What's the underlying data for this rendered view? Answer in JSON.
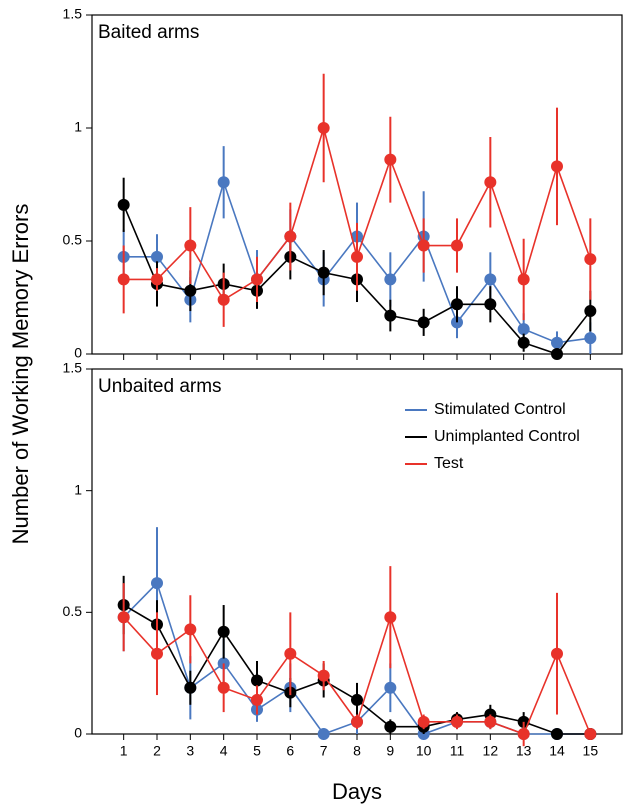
{
  "chart_data": [
    {
      "type": "line",
      "title": "Baited arms",
      "ylabel": "Number of Working Memory Errors",
      "ylim": [
        0,
        1.5
      ],
      "yticks": [
        0,
        0.5,
        1,
        1.5
      ],
      "series": [
        {
          "color": "#4a78c0",
          "values": [
            0.43,
            0.43,
            0.24,
            0.76,
            0.33,
            0.52,
            0.33,
            0.52,
            0.33,
            0.52,
            0.14,
            0.33,
            0.11,
            0.05,
            0.07
          ],
          "errors": [
            0.12,
            0.1,
            0.1,
            0.16,
            0.13,
            0.12,
            0.12,
            0.15,
            0.12,
            0.2,
            0.07,
            0.12,
            0.07,
            0.05,
            0.07
          ]
        },
        {
          "color": "#000000",
          "values": [
            0.66,
            0.31,
            0.28,
            0.31,
            0.28,
            0.43,
            0.36,
            0.33,
            0.17,
            0.14,
            0.22,
            0.22,
            0.05,
            0,
            0.19
          ],
          "errors": [
            0.12,
            0.1,
            0.09,
            0.09,
            0.08,
            0.1,
            0.1,
            0.1,
            0.07,
            0.06,
            0.08,
            0.08,
            0.04,
            0,
            0.09
          ]
        },
        {
          "color": "#e8322a",
          "values": [
            0.33,
            0.33,
            0.48,
            0.24,
            0.33,
            0.52,
            1.0,
            0.43,
            0.86,
            0.48,
            0.48,
            0.76,
            0.33,
            0.83,
            0.42
          ],
          "errors": [
            0.15,
            0.05,
            0.17,
            0.12,
            0.1,
            0.15,
            0.24,
            0.15,
            0.19,
            0.12,
            0.12,
            0.2,
            0.18,
            0.26,
            0.18
          ]
        }
      ]
    },
    {
      "type": "line",
      "title": "Unbaited arms",
      "xlabel": "Days",
      "x": [
        1,
        2,
        3,
        4,
        5,
        6,
        7,
        8,
        9,
        10,
        11,
        12,
        13,
        14,
        15
      ],
      "xlim": [
        0.05,
        15.95
      ],
      "ylim": [
        0,
        1.5
      ],
      "yticks": [
        0,
        0.5,
        1,
        1.5
      ],
      "series": [
        {
          "name": "Stimulated Control",
          "color": "#4a78c0",
          "values": [
            0.48,
            0.62,
            0.19,
            0.29,
            0.1,
            0.19,
            0,
            0.05,
            0.19,
            0,
            0.05,
            0.05,
            0,
            0,
            0
          ],
          "errors": [
            0.14,
            0.23,
            0.13,
            0.1,
            0.05,
            0.1,
            0,
            0.05,
            0.1,
            0,
            0.03,
            0.03,
            0,
            0,
            0
          ]
        },
        {
          "name": "Unimplanted Control",
          "color": "#000000",
          "values": [
            0.53,
            0.45,
            0.19,
            0.42,
            0.22,
            0.17,
            0.22,
            0.14,
            0.03,
            0.03,
            0.06,
            0.08,
            0.05,
            0,
            0
          ],
          "errors": [
            0.12,
            0.1,
            0.07,
            0.11,
            0.08,
            0.06,
            0.07,
            0.07,
            0.03,
            0.03,
            0.03,
            0.04,
            0.04,
            0,
            0
          ]
        },
        {
          "name": "Test",
          "color": "#e8322a",
          "values": [
            0.48,
            0.33,
            0.43,
            0.19,
            0.14,
            0.33,
            0.24,
            0.05,
            0.48,
            0.05,
            0.05,
            0.05,
            0,
            0.33,
            0
          ],
          "errors": [
            0.14,
            0.17,
            0.14,
            0.1,
            0.06,
            0.17,
            0.06,
            0.03,
            0.21,
            0.03,
            0.03,
            0.03,
            0.05,
            0.25,
            0
          ]
        }
      ]
    }
  ]
}
